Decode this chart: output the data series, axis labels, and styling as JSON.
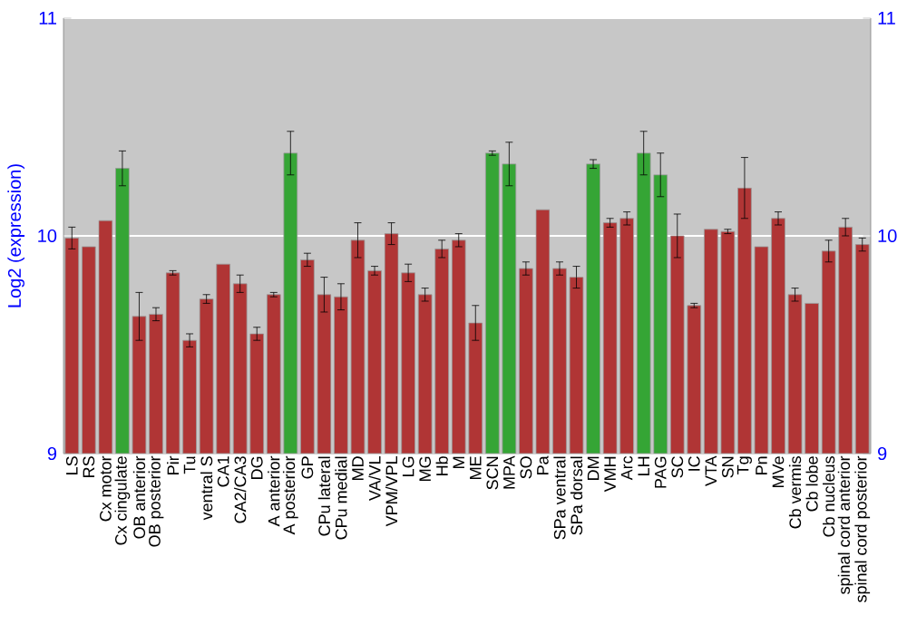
{
  "chart_data": {
    "type": "bar",
    "ylabel": "Log2 (expression)",
    "categories": [
      "LS",
      "RS",
      "Cx motor",
      "Cx cingulate",
      "OB anterior",
      "OB posterior",
      "Pir",
      "Tu",
      "ventral S",
      "CA1",
      "CA2/CA3",
      "DG",
      "A anterior",
      "A posterior",
      "GP",
      "CPu lateral",
      "CPu medial",
      "MD",
      "VA/VL",
      "VPM/VPL",
      "LG",
      "MG",
      "Hb",
      "M",
      "ME",
      "SCN",
      "MPA",
      "SO",
      "Pa",
      "SPa ventral",
      "SPa dorsal",
      "DM",
      "VMH",
      "Arc",
      "LH",
      "PAG",
      "SC",
      "IC",
      "VTA",
      "SN",
      "Tg",
      "Pn",
      "MVe",
      "Cb vermis",
      "Cb lobe",
      "Cb nucleus",
      "spinal cord anterior",
      "spinal cord posterior"
    ],
    "values": [
      9.99,
      9.95,
      10.07,
      10.31,
      9.63,
      9.64,
      9.83,
      9.52,
      9.71,
      9.87,
      9.78,
      9.55,
      9.73,
      10.38,
      9.89,
      9.73,
      9.72,
      9.98,
      9.84,
      10.01,
      9.83,
      9.73,
      9.94,
      9.98,
      9.6,
      10.38,
      10.33,
      9.85,
      10.12,
      9.85,
      9.81,
      10.33,
      10.06,
      10.08,
      10.38,
      10.28,
      10.0,
      9.68,
      10.03,
      10.02,
      10.22,
      9.95,
      10.08,
      9.73,
      9.69,
      9.93,
      10.04,
      9.96
    ],
    "errors": [
      0.05,
      null,
      null,
      0.08,
      0.11,
      0.03,
      0.01,
      0.03,
      0.02,
      null,
      0.04,
      0.03,
      0.01,
      0.1,
      0.03,
      0.08,
      0.06,
      0.08,
      0.02,
      0.05,
      0.04,
      0.03,
      0.04,
      0.03,
      0.08,
      0.01,
      0.1,
      0.03,
      null,
      0.03,
      0.05,
      0.02,
      0.02,
      0.03,
      0.1,
      0.1,
      0.1,
      0.01,
      null,
      0.01,
      0.14,
      null,
      0.03,
      0.03,
      null,
      0.05,
      0.04,
      0.03
    ],
    "colors": [
      "#b03535",
      "#b03535",
      "#b03535",
      "#35a535",
      "#b03535",
      "#b03535",
      "#b03535",
      "#b03535",
      "#b03535",
      "#b03535",
      "#b03535",
      "#b03535",
      "#b03535",
      "#35a535",
      "#b03535",
      "#b03535",
      "#b03535",
      "#b03535",
      "#b03535",
      "#b03535",
      "#b03535",
      "#b03535",
      "#b03535",
      "#b03535",
      "#b03535",
      "#35a535",
      "#35a535",
      "#b03535",
      "#b03535",
      "#b03535",
      "#b03535",
      "#35a535",
      "#b03535",
      "#b03535",
      "#35a535",
      "#35a535",
      "#b03535",
      "#b03535",
      "#b03535",
      "#b03535",
      "#b03535",
      "#b03535",
      "#b03535",
      "#b03535",
      "#b03535",
      "#b03535",
      "#b03535",
      "#b03535"
    ],
    "ylim": [
      9,
      11
    ],
    "yticks": [
      9,
      10,
      11
    ],
    "y2lim": [
      9,
      11
    ],
    "y2ticks": [
      9,
      10,
      11
    ],
    "grid": "y"
  }
}
